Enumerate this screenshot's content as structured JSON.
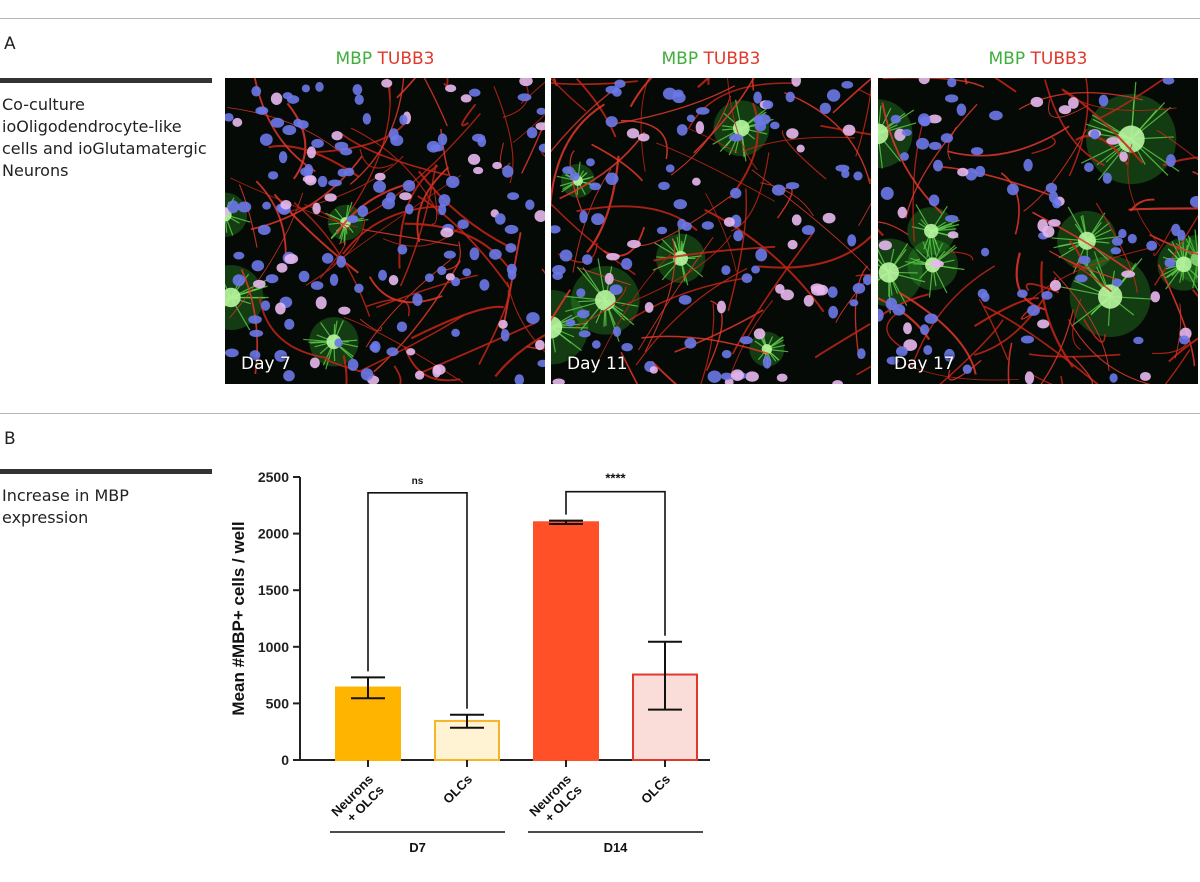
{
  "panel_a": {
    "letter": "A",
    "description": "Co-culture ioOligodendrocyte-like cells and ioGlutamatergic Neurons",
    "images": [
      {
        "day": "Day 7",
        "stain_green": "MBP",
        "stain_red": "TUBB3"
      },
      {
        "day": "Day 11",
        "stain_green": "MBP",
        "stain_red": "TUBB3"
      },
      {
        "day": "Day 17",
        "stain_green": "MBP",
        "stain_red": "TUBB3"
      }
    ]
  },
  "panel_b": {
    "letter": "B",
    "description": "Increase in MBP expression"
  },
  "colors": {
    "mbp": "#3fae3a",
    "tubb3": "#e0392c"
  },
  "chart_data": {
    "type": "bar",
    "ylabel": "Mean #MBP+ cells / well",
    "ylim": [
      0,
      2500
    ],
    "yticks": [
      0,
      500,
      1000,
      1500,
      2000,
      2500
    ],
    "categories": [
      "Neurons + OLCs",
      "OLCs",
      "Neurons + OLCs",
      "OLCs"
    ],
    "values": [
      640,
      345,
      2100,
      755
    ],
    "error_low": [
      545,
      285,
      2085,
      445
    ],
    "error_high": [
      730,
      400,
      2115,
      1045
    ],
    "bar_fill": [
      "#ffb400",
      "#fff3d4",
      "#ff5028",
      "#fadcd8"
    ],
    "bar_stroke": [
      "#ffb400",
      "#f5b529",
      "#ff5028",
      "#e0392c"
    ],
    "groups": [
      {
        "label": "D7",
        "indices": [
          0,
          1
        ]
      },
      {
        "label": "D14",
        "indices": [
          2,
          3
        ]
      }
    ],
    "significance": [
      {
        "pair": [
          0,
          1
        ],
        "label": "ns"
      },
      {
        "pair": [
          2,
          3
        ],
        "label": "****"
      }
    ],
    "grid": false
  }
}
